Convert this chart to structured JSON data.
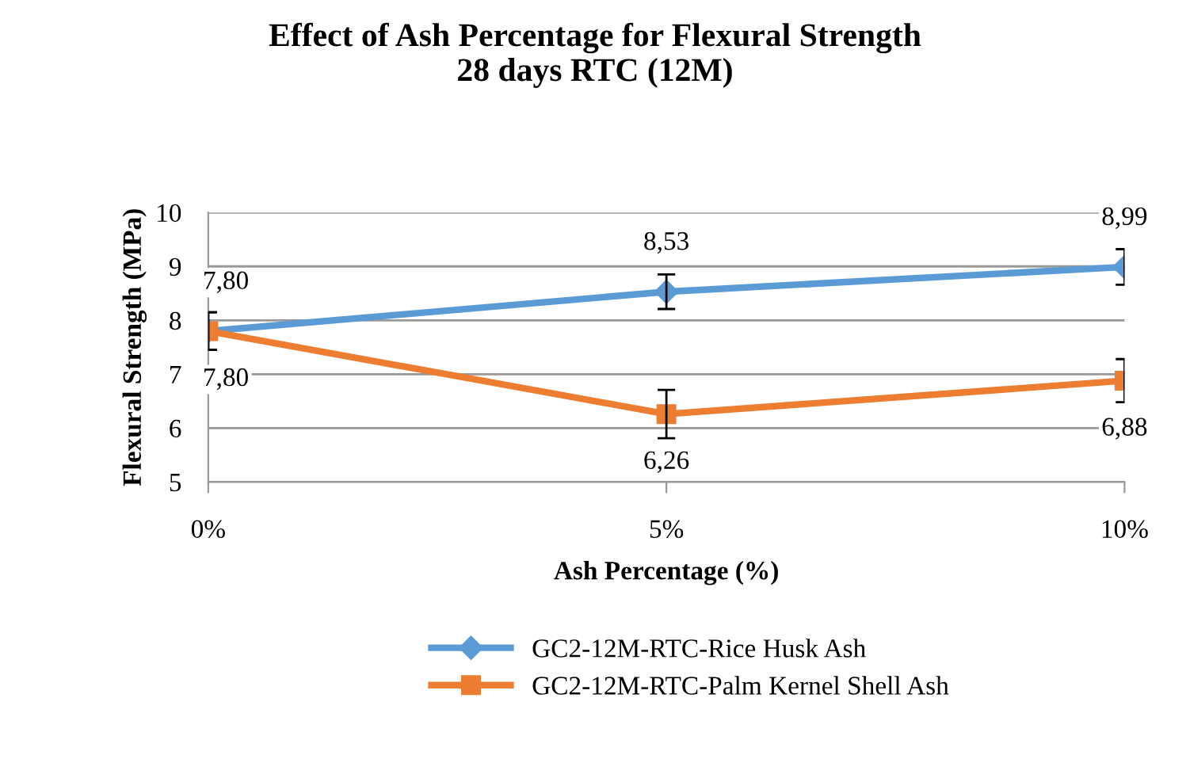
{
  "chart_data": {
    "type": "line",
    "title": "Effect of Ash Percentage for Flexural Strength\n28 days RTC (12M)",
    "xlabel": "Ash Percentage (%)",
    "ylabel": "Flexural Strength (MPa)",
    "categories": [
      "0%",
      "5%",
      "10%"
    ],
    "series": [
      {
        "name": "GC2-12M-RTC-Rice Husk Ash",
        "color": "#5b9bd5",
        "marker": "diamond",
        "values": [
          7.8,
          8.53,
          8.99
        ],
        "errors": [
          0.35,
          0.32,
          0.33
        ],
        "value_labels": [
          "7,80",
          "8,53",
          "8,99"
        ]
      },
      {
        "name": "GC2-12M-RTC-Palm Kernel Shell Ash",
        "color": "#ed7d31",
        "marker": "square",
        "values": [
          7.8,
          6.26,
          6.88
        ],
        "errors": [
          0.35,
          0.45,
          0.4
        ],
        "value_labels": [
          "7,80",
          "6,26",
          "6,88"
        ]
      }
    ],
    "ylim": [
      5,
      10
    ],
    "yticks": [
      5,
      6,
      7,
      8,
      9,
      10
    ],
    "grid": "y",
    "legend": "bottom",
    "line_style": "solid"
  }
}
